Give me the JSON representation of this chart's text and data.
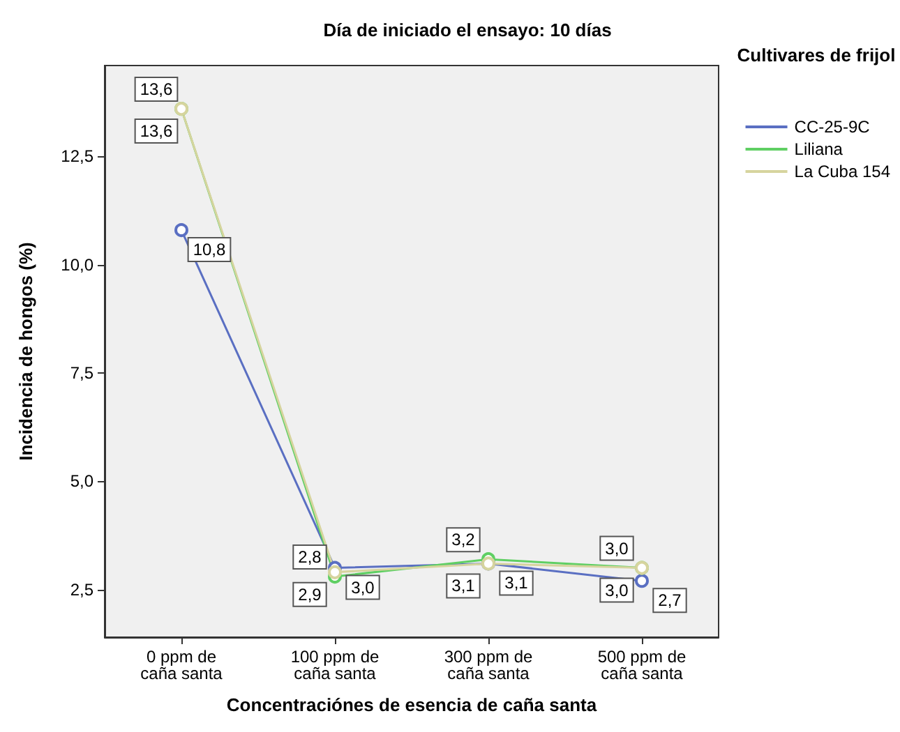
{
  "chart_data": {
    "type": "line",
    "title": "Día de iniciado el ensayo: 10 días",
    "xlabel": "Concentraciónes de esencia de caña santa",
    "ylabel": "Incidencia de hongos (%)",
    "legend_title": "Cultivares de frijol",
    "categories": [
      "0 ppm de\ncaña santa",
      "100 ppm de\ncaña santa",
      "300 ppm de\ncaña santa",
      "500 ppm de\ncaña santa"
    ],
    "series": [
      {
        "name": "CC-25-9C",
        "color": "#5a6fc2",
        "values": [
          10.8,
          3.0,
          3.1,
          2.7
        ],
        "value_labels": [
          "10,8",
          "3,0",
          "3,1",
          "2,7"
        ]
      },
      {
        "name": "Liliana",
        "color": "#5fcf63",
        "values": [
          13.6,
          2.8,
          3.2,
          3.0
        ],
        "value_labels": [
          "13,6",
          "2,8",
          "3,2",
          "3,0"
        ]
      },
      {
        "name": "La Cuba 154",
        "color": "#d6d49e",
        "values": [
          13.6,
          2.9,
          3.1,
          3.0
        ],
        "value_labels": [
          "13,6",
          "2,9",
          "3,1",
          "3,0"
        ]
      }
    ],
    "ylim": [
      1.4,
      14.6
    ],
    "yticks": [
      {
        "value": 2.5,
        "label": "2,5"
      },
      {
        "value": 5,
        "label": "5,0"
      },
      {
        "value": 7.5,
        "label": "7,5"
      },
      {
        "value": 10,
        "label": "10,0"
      },
      {
        "value": 12.5,
        "label": "12,5"
      }
    ],
    "grid": false,
    "legend": "right",
    "marker": "circle",
    "line_style": "solid"
  }
}
